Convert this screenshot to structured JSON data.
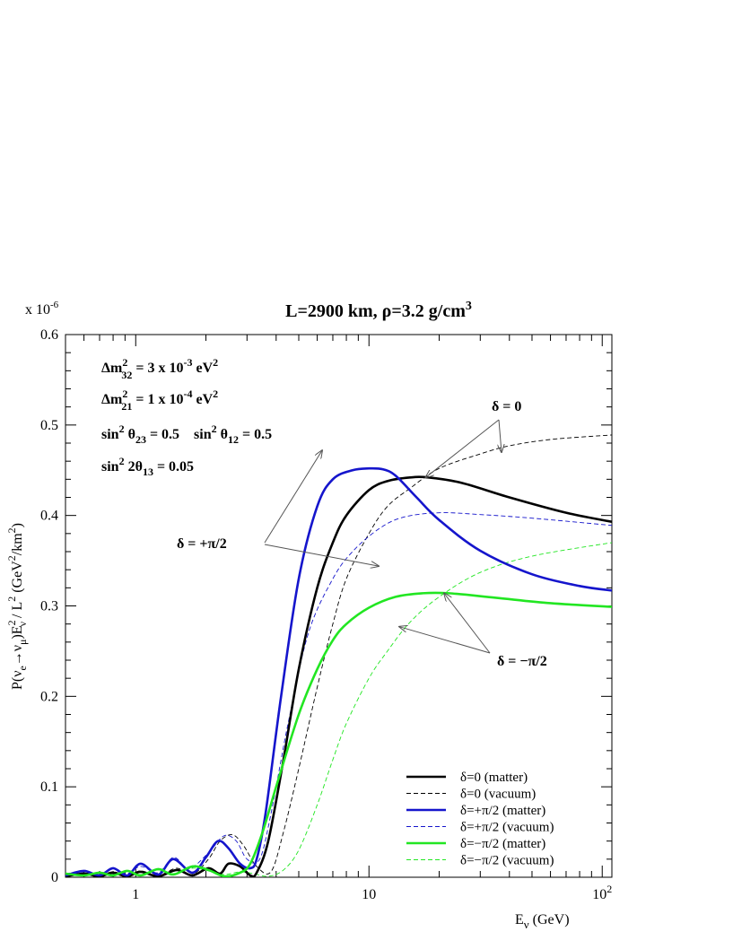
{
  "chart_data": {
    "type": "line",
    "title": "L=2900 km, ρ=3.2 g/cm³",
    "title_parts": {
      "main": "L=2900 km, ρ=3.2 g/cm",
      "sup": "3"
    },
    "y_multiplier": {
      "base": "x 10",
      "exp": "-6"
    },
    "xlabel": {
      "main": "E",
      "sub": "ν",
      "rest": " (GeV)"
    },
    "ylabel": {
      "p1": "P(ν",
      "s1": "e",
      "p2": "→ν",
      "s2": "μ",
      "p3": ")E",
      "sup3": "2",
      "sub3": "ν",
      "p4": " / L",
      "sup4": "2",
      "p5": "   (GeV",
      "sup5": "2",
      "p6": "/km",
      "sup6": "2",
      "p7": ")"
    },
    "x_scale": "log",
    "xlim": [
      0.5,
      110
    ],
    "ylim": [
      0,
      0.6
    ],
    "x_ticks": [
      {
        "value": 1,
        "label": "1"
      },
      {
        "value": 10,
        "label": "10"
      },
      {
        "value": 100,
        "label": "10",
        "sup": "2"
      }
    ],
    "y_ticks": [
      {
        "value": 0,
        "label": "0"
      },
      {
        "value": 0.1,
        "label": "0.1"
      },
      {
        "value": 0.2,
        "label": "0.2"
      },
      {
        "value": 0.3,
        "label": "0.3"
      },
      {
        "value": 0.4,
        "label": "0.4"
      },
      {
        "value": 0.5,
        "label": "0.5"
      },
      {
        "value": 0.6,
        "label": "0.6"
      }
    ],
    "grid": false,
    "parameters": [
      {
        "a": "Δm",
        "sup": "2",
        "sub": "32",
        "b": " = 3 x 10",
        "sup2": "-3",
        "c": " eV",
        "sup3": "2"
      },
      {
        "a": "Δm",
        "sup": "2",
        "sub": "21",
        "b": " = 1 x 10",
        "sup2": "-4",
        "c": " eV",
        "sup3": "2"
      },
      {
        "a": "sin",
        "sup": "2",
        "b": " θ",
        "sub": "23",
        "c": " = 0.5    sin",
        "sup2": "2",
        "d": " θ",
        "sub2": "12",
        "e": " = 0.5"
      },
      {
        "a": "sin",
        "sup": "2",
        "b": " 2θ",
        "sub": "13",
        "c": " = 0.05"
      }
    ],
    "annotations": [
      {
        "text": "δ = 0",
        "targets": [
          [
            17.5,
            0.442
          ],
          [
            37,
            0.47
          ]
        ]
      },
      {
        "text": "δ = +π/2",
        "targets": [
          [
            6.3,
            0.472
          ],
          [
            11,
            0.344
          ]
        ]
      },
      {
        "text": "δ = −π/2",
        "targets": [
          [
            21,
            0.314
          ],
          [
            13.5,
            0.277
          ]
        ]
      }
    ],
    "legend_position": "bottom-right",
    "series": [
      {
        "name": "δ=0 (matter)",
        "color": "#000000",
        "style": "solid",
        "points": [
          [
            0.5,
            0.001
          ],
          [
            0.6,
            0.004
          ],
          [
            0.7,
            0.001
          ],
          [
            0.8,
            0.005
          ],
          [
            0.92,
            0.001
          ],
          [
            1.05,
            0.006
          ],
          [
            1.25,
            0.001
          ],
          [
            1.5,
            0.008
          ],
          [
            1.75,
            0.002
          ],
          [
            2.05,
            0.01
          ],
          [
            2.3,
            0.004
          ],
          [
            2.5,
            0.015
          ],
          [
            2.8,
            0.012
          ],
          [
            3.1,
            0.002
          ],
          [
            3.3,
            0.005
          ],
          [
            3.7,
            0.04
          ],
          [
            4.3,
            0.13
          ],
          [
            5,
            0.23
          ],
          [
            6,
            0.32
          ],
          [
            7,
            0.37
          ],
          [
            8,
            0.4
          ],
          [
            10,
            0.428
          ],
          [
            12,
            0.438
          ],
          [
            15,
            0.442
          ],
          [
            18,
            0.442
          ],
          [
            25,
            0.436
          ],
          [
            40,
            0.42
          ],
          [
            70,
            0.403
          ],
          [
            110,
            0.393
          ]
        ]
      },
      {
        "name": "δ=0 (vacuum)",
        "color": "#000000",
        "style": "dash",
        "points": [
          [
            0.5,
            0.002
          ],
          [
            0.6,
            0.004
          ],
          [
            0.7,
            0.002
          ],
          [
            0.8,
            0.006
          ],
          [
            0.92,
            0.002
          ],
          [
            1.05,
            0.007
          ],
          [
            1.25,
            0.002
          ],
          [
            1.5,
            0.01
          ],
          [
            1.75,
            0.003
          ],
          [
            2.05,
            0.02
          ],
          [
            2.3,
            0.04
          ],
          [
            2.6,
            0.047
          ],
          [
            2.9,
            0.035
          ],
          [
            3.3,
            0.012
          ],
          [
            3.8,
            0.006
          ],
          [
            4.3,
            0.05
          ],
          [
            5,
            0.12
          ],
          [
            6,
            0.21
          ],
          [
            7,
            0.28
          ],
          [
            8,
            0.33
          ],
          [
            10,
            0.38
          ],
          [
            12,
            0.41
          ],
          [
            15,
            0.43
          ],
          [
            20,
            0.452
          ],
          [
            30,
            0.468
          ],
          [
            40,
            0.477
          ],
          [
            60,
            0.484
          ],
          [
            110,
            0.489
          ]
        ]
      },
      {
        "name": "δ=+π/2 (matter)",
        "color": "#1515cc",
        "style": "solid",
        "points": [
          [
            0.5,
            0.002
          ],
          [
            0.6,
            0.007
          ],
          [
            0.7,
            0.002
          ],
          [
            0.8,
            0.01
          ],
          [
            0.92,
            0.002
          ],
          [
            1.05,
            0.015
          ],
          [
            1.25,
            0.003
          ],
          [
            1.45,
            0.02
          ],
          [
            1.75,
            0.005
          ],
          [
            2.0,
            0.022
          ],
          [
            2.25,
            0.04
          ],
          [
            2.5,
            0.032
          ],
          [
            2.8,
            0.015
          ],
          [
            3.1,
            0.01
          ],
          [
            3.3,
            0.02
          ],
          [
            3.6,
            0.07
          ],
          [
            4.2,
            0.2
          ],
          [
            5,
            0.33
          ],
          [
            6,
            0.41
          ],
          [
            7,
            0.44
          ],
          [
            8.5,
            0.45
          ],
          [
            10,
            0.452
          ],
          [
            11.5,
            0.451
          ],
          [
            13,
            0.444
          ],
          [
            16,
            0.42
          ],
          [
            20,
            0.395
          ],
          [
            30,
            0.361
          ],
          [
            50,
            0.335
          ],
          [
            80,
            0.322
          ],
          [
            110,
            0.317
          ]
        ]
      },
      {
        "name": "δ=+π/2 (vacuum)",
        "color": "#1515cc",
        "style": "dash",
        "points": [
          [
            0.5,
            0.004
          ],
          [
            0.6,
            0.006
          ],
          [
            0.7,
            0.004
          ],
          [
            0.8,
            0.009
          ],
          [
            0.92,
            0.004
          ],
          [
            1.05,
            0.012
          ],
          [
            1.25,
            0.005
          ],
          [
            1.45,
            0.022
          ],
          [
            1.65,
            0.01
          ],
          [
            1.8,
            0.013
          ],
          [
            2.1,
            0.03
          ],
          [
            2.4,
            0.046
          ],
          [
            2.7,
            0.04
          ],
          [
            3.0,
            0.02
          ],
          [
            3.4,
            0.02
          ],
          [
            3.8,
            0.07
          ],
          [
            4.5,
            0.17
          ],
          [
            5.5,
            0.27
          ],
          [
            7,
            0.33
          ],
          [
            8.5,
            0.36
          ],
          [
            11,
            0.385
          ],
          [
            14,
            0.398
          ],
          [
            20,
            0.403
          ],
          [
            30,
            0.401
          ],
          [
            50,
            0.397
          ],
          [
            110,
            0.389
          ]
        ]
      },
      {
        "name": "δ=−π/2 (matter)",
        "color": "#22e622",
        "style": "solid",
        "points": [
          [
            0.5,
            0.004
          ],
          [
            0.6,
            0.002
          ],
          [
            0.7,
            0.005
          ],
          [
            0.8,
            0.002
          ],
          [
            0.92,
            0.007
          ],
          [
            1.05,
            0.002
          ],
          [
            1.25,
            0.009
          ],
          [
            1.45,
            0.003
          ],
          [
            1.75,
            0.012
          ],
          [
            2.05,
            0.008
          ],
          [
            2.4,
            0.001
          ],
          [
            2.8,
            0.005
          ],
          [
            3.1,
            0.015
          ],
          [
            3.5,
            0.05
          ],
          [
            4,
            0.1
          ],
          [
            5,
            0.18
          ],
          [
            6,
            0.23
          ],
          [
            7,
            0.262
          ],
          [
            8,
            0.28
          ],
          [
            10,
            0.298
          ],
          [
            13,
            0.31
          ],
          [
            17,
            0.314
          ],
          [
            22,
            0.314
          ],
          [
            35,
            0.309
          ],
          [
            60,
            0.303
          ],
          [
            110,
            0.299
          ]
        ]
      },
      {
        "name": "δ=−π/2 (vacuum)",
        "color": "#22e622",
        "style": "dash",
        "points": [
          [
            0.5,
            0.004
          ],
          [
            0.6,
            0.002
          ],
          [
            0.7,
            0.004
          ],
          [
            0.8,
            0.002
          ],
          [
            0.92,
            0.006
          ],
          [
            1.05,
            0.003
          ],
          [
            1.25,
            0.008
          ],
          [
            1.45,
            0.004
          ],
          [
            1.75,
            0.01
          ],
          [
            2.05,
            0.007
          ],
          [
            2.4,
            0.003
          ],
          [
            2.8,
            0.006
          ],
          [
            3.2,
            0.004
          ],
          [
            3.7,
            0.001
          ],
          [
            4.3,
            0.008
          ],
          [
            5,
            0.03
          ],
          [
            6,
            0.08
          ],
          [
            7,
            0.13
          ],
          [
            8,
            0.17
          ],
          [
            10,
            0.22
          ],
          [
            12,
            0.25
          ],
          [
            15,
            0.282
          ],
          [
            20,
            0.31
          ],
          [
            30,
            0.337
          ],
          [
            50,
            0.355
          ],
          [
            110,
            0.37
          ]
        ]
      }
    ]
  }
}
